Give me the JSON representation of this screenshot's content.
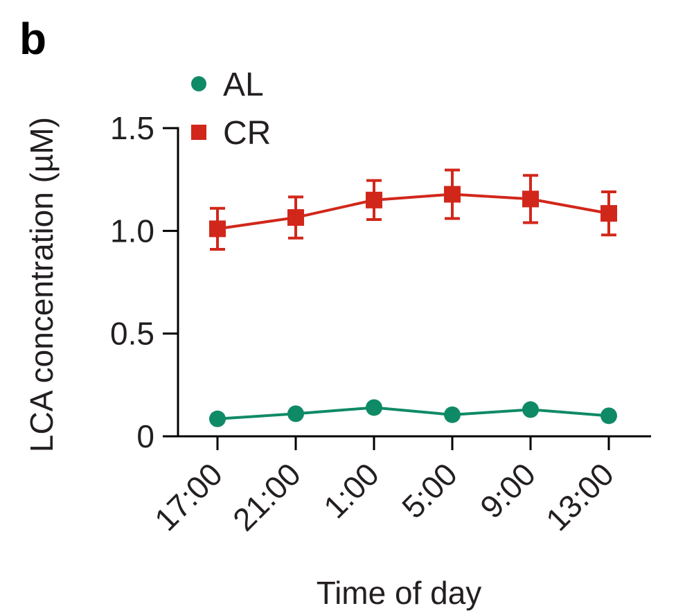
{
  "panel_label": "b",
  "chart_data": {
    "type": "line",
    "title": "",
    "xlabel": "Time of day",
    "ylabel": "LCA concentration (µM)",
    "categories": [
      "17:00",
      "21:00",
      "1:00",
      "5:00",
      "9:00",
      "13:00"
    ],
    "ylim": [
      0,
      1.5
    ],
    "yticks": [
      0,
      0.5,
      1.0,
      1.5
    ],
    "ytick_labels": [
      "0",
      "0.5",
      "1.0",
      "1.5"
    ],
    "grid": false,
    "legend_position": "top-left",
    "series": [
      {
        "name": "AL",
        "marker": "circle",
        "color": "#0f8a66",
        "values": [
          0.085,
          0.11,
          0.14,
          0.105,
          0.13,
          0.1
        ],
        "errors": [
          0,
          0,
          0,
          0,
          0,
          0
        ]
      },
      {
        "name": "CR",
        "marker": "square",
        "color": "#d1271b",
        "values": [
          1.01,
          1.065,
          1.15,
          1.178,
          1.155,
          1.085
        ],
        "errors": [
          0.1,
          0.1,
          0.095,
          0.118,
          0.115,
          0.105
        ]
      }
    ]
  }
}
